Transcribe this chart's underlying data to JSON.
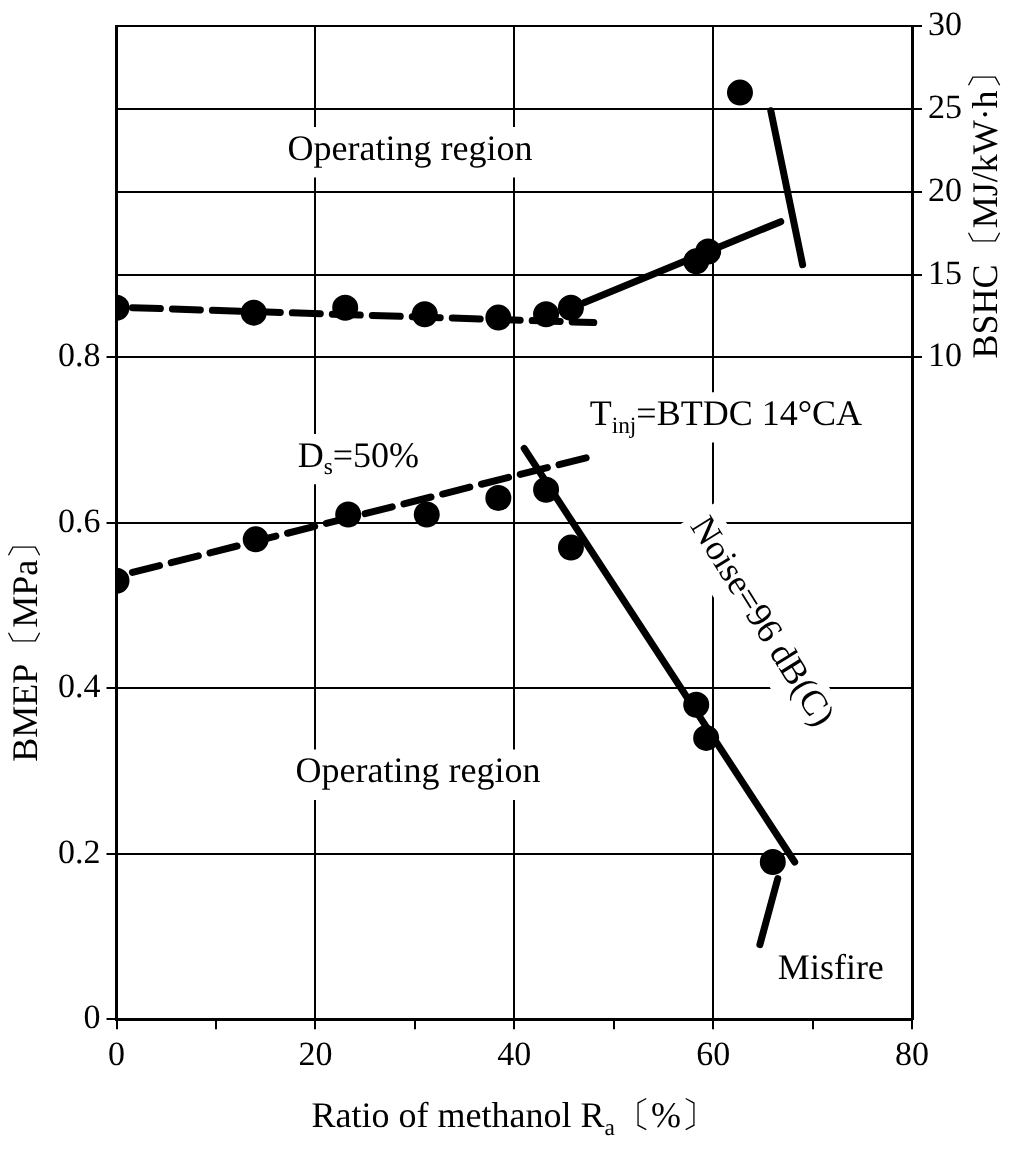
{
  "chart_data": {
    "type": "scatter",
    "xlabel": "Ratio of methanol R$_{a}$〔%〕",
    "ylabel": "BMEP〔MPa〕",
    "y2label": "BSHC〔MJ/kW·h〕",
    "xlim": [
      0,
      80
    ],
    "xticks": [
      0,
      {
        "value": 10,
        "label": null
      },
      20,
      {
        "value": 30,
        "label": null
      },
      40,
      {
        "value": 50,
        "label": null
      },
      60,
      {
        "value": 70,
        "label": null
      },
      80
    ],
    "ylim": [
      0,
      1.2
    ],
    "yticks": [
      0,
      0.2,
      0.4,
      0.6,
      0.8
    ],
    "y2lim": [
      -30,
      30
    ],
    "y2ticks": [
      10,
      15,
      20,
      25,
      30
    ],
    "grid": true,
    "legend": false,
    "series": [
      {
        "type": "scatter",
        "axis": "y2",
        "color": "#000000",
        "marker": "circle",
        "x": [
          0,
          13.8,
          23,
          31,
          38.4,
          43.2,
          45.7,
          58.3,
          59.5,
          62.7
        ],
        "values": [
          13.0,
          12.7,
          13.0,
          12.6,
          12.4,
          12.6,
          13.0,
          15.8,
          16.4,
          26.0
        ]
      },
      {
        "type": "scatter",
        "axis": "y",
        "color": "#000000",
        "marker": "circle",
        "x": [
          0,
          14,
          23.3,
          31.2,
          38.4,
          43.2,
          45.7,
          58.3,
          59.3,
          66
        ],
        "values": [
          0.53,
          0.58,
          0.61,
          0.61,
          0.63,
          0.64,
          0.57,
          0.38,
          0.34,
          0.19
        ]
      },
      {
        "type": "line",
        "axis": "y2",
        "color": "#000000",
        "marker": "none",
        "line_style": "dashed",
        "x": [
          1.6,
          48
        ],
        "values": [
          13.0,
          12.1
        ]
      },
      {
        "type": "line",
        "axis": "y2",
        "color": "#000000",
        "marker": "none",
        "line_style": "solid",
        "x": [
          47,
          66.8
        ],
        "values": [
          13.3,
          18.2
        ]
      },
      {
        "type": "line",
        "axis": "y2",
        "color": "#000000",
        "marker": "none",
        "line_style": "solid",
        "x": [
          65.8,
          69
        ],
        "values": [
          24.9,
          15.6
        ]
      },
      {
        "type": "line",
        "axis": "y",
        "color": "#000000",
        "marker": "none",
        "line_style": "dashed",
        "x": [
          1.6,
          47.7
        ],
        "values": [
          0.54,
          0.68
        ]
      },
      {
        "type": "line",
        "axis": "y",
        "color": "#000000",
        "marker": "none",
        "line_style": "solid",
        "x": [
          41,
          68.2
        ],
        "values": [
          0.69,
          0.19
        ]
      },
      {
        "type": "line",
        "axis": "y",
        "color": "#000000",
        "marker": "none",
        "line_style": "solid",
        "x": [
          66.5,
          64.7
        ],
        "values": [
          0.17,
          0.09
        ]
      }
    ],
    "annotations": [
      "Operating region",
      "T$_{inj}$=BTDC 14°CA",
      "D$_{s}$=50%",
      "Noise=96 dB(C)",
      "Operating region",
      "Misfire"
    ]
  }
}
